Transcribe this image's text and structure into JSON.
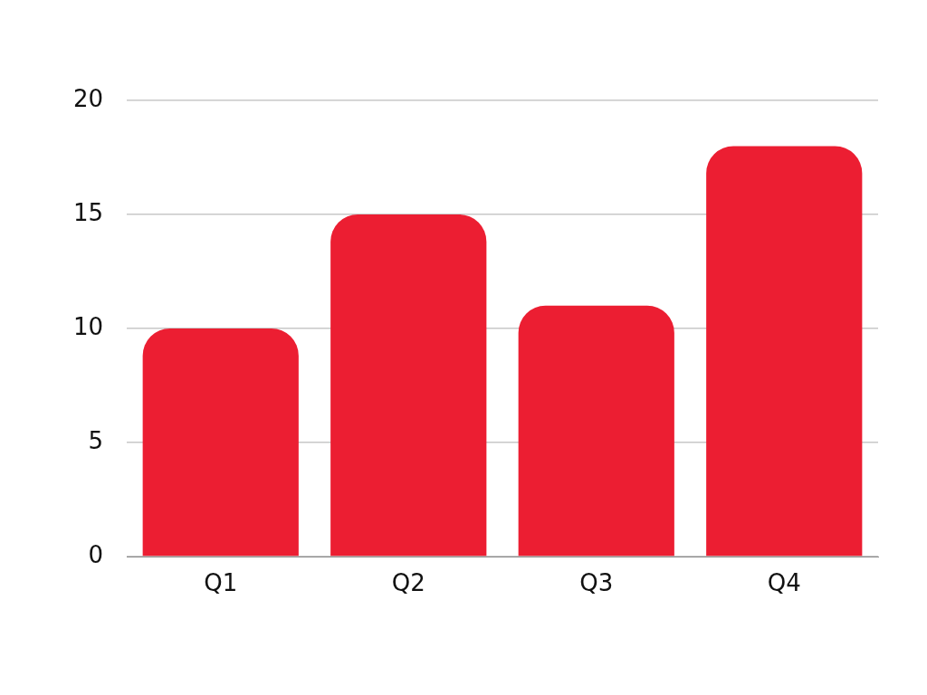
{
  "chart_data": {
    "type": "bar",
    "categories": [
      "Q1",
      "Q2",
      "Q3",
      "Q4"
    ],
    "values": [
      10,
      15,
      11,
      18
    ],
    "color": "#ec1e32",
    "ylim": [
      0,
      20
    ],
    "yticks": [
      0,
      5,
      10,
      15,
      20
    ],
    "grid": "y",
    "legend": false
  }
}
